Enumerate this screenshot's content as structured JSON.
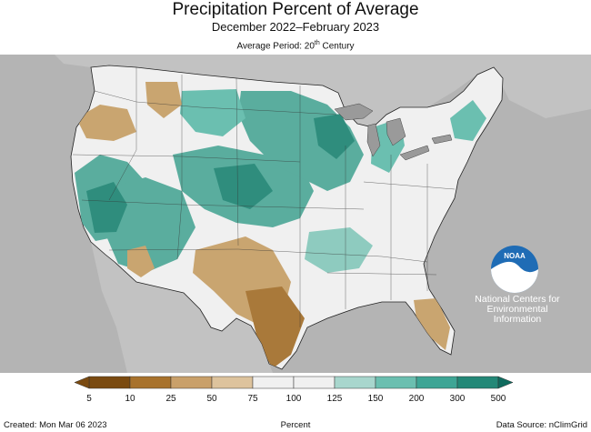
{
  "header": {
    "title": "Precipitation Percent of Average",
    "subtitle": "December 2022–February 2023",
    "period_prefix": "Average Period: 20",
    "period_sup": "th",
    "period_suffix": " Century"
  },
  "legend": {
    "labels": [
      "5",
      "10",
      "25",
      "50",
      "75",
      "100",
      "125",
      "150",
      "200",
      "300",
      "500"
    ],
    "colors": [
      "#7a4a10",
      "#a8722c",
      "#c9a06a",
      "#ddc39d",
      "#f0f0f0",
      "#f0f0f0",
      "#a8d6cd",
      "#6bbfb0",
      "#3ea595",
      "#238877",
      "#0f6b5e"
    ],
    "unit": "Percent"
  },
  "footer": {
    "created": "Created: Mon Mar 06 2023",
    "source": "Data Source: nClimGrid"
  },
  "logo": {
    "name": "NOAA",
    "caption_line1": "National Centers for",
    "caption_line2": "Environmental",
    "caption_line3": "Information"
  },
  "map_colors": {
    "background": "#b4b4b4",
    "great_lakes": "#9a9a9a",
    "us_land": "#f0f0f0",
    "wet": "#5aad9e",
    "very_wet": "#2f8d7d",
    "dry": "#c9a570",
    "very_dry": "#a9793a"
  }
}
